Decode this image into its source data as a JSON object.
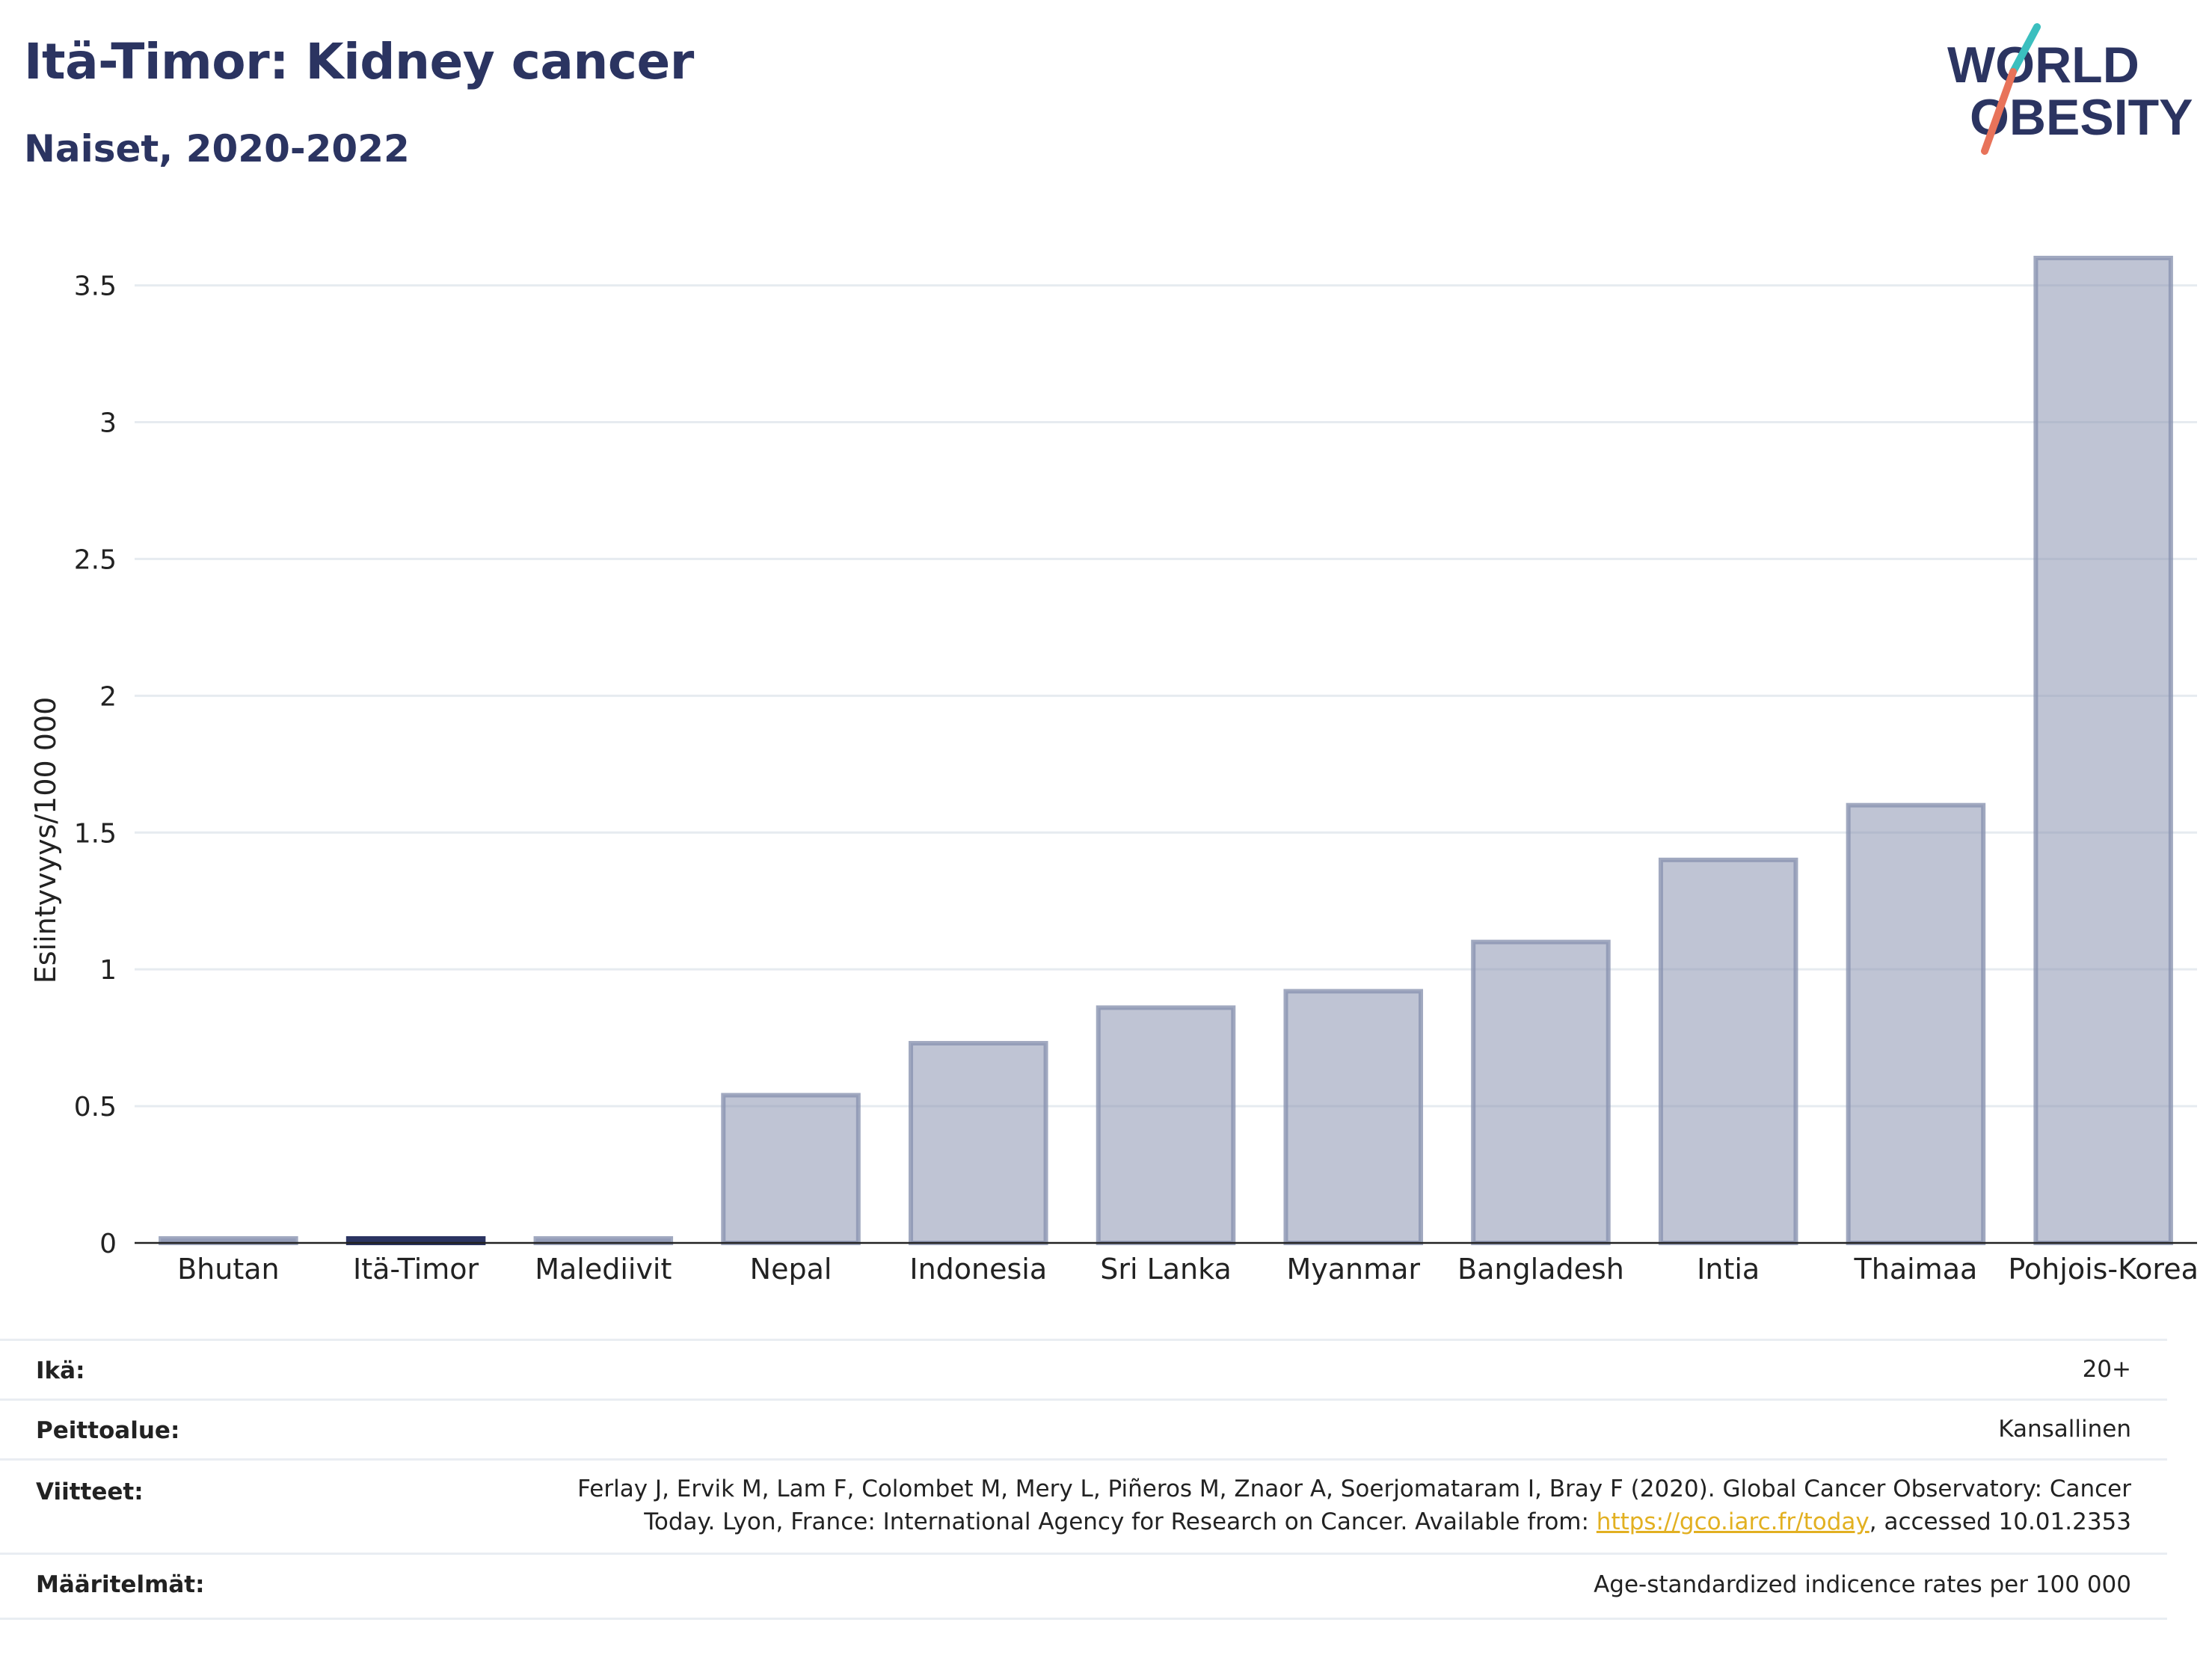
{
  "header": {
    "title": "Itä-Timor: Kidney cancer",
    "subtitle": "Naiset, 2020-2022",
    "logo_line1": "WORLD",
    "logo_line2": "OBESITY"
  },
  "chart_data": {
    "type": "bar",
    "categories": [
      "Bhutan",
      "Itä-Timor",
      "Malediivit",
      "Nepal",
      "Indonesia",
      "Sri Lanka",
      "Myanmar",
      "Bangladesh",
      "Intia",
      "Thaimaa",
      "Pohjois-Korea"
    ],
    "values": [
      0.0,
      0.0,
      0.0,
      0.54,
      0.73,
      0.86,
      0.92,
      1.1,
      1.4,
      1.6,
      3.6
    ],
    "highlight": "Itä-Timor",
    "ylabel": "Esiintyvyys/100 000",
    "xlabel": "",
    "ylim": [
      0,
      3.6
    ],
    "yticks": [
      "0",
      "0.5",
      "1",
      "1.5",
      "2",
      "2.5",
      "3",
      "3.5"
    ],
    "ytick_values": [
      0,
      0.5,
      1,
      1.5,
      2,
      2.5,
      3,
      3.5
    ],
    "grid": true,
    "colors": {
      "bar": "#8a93b0",
      "highlight": "#2b3461",
      "grid": "#e6ebf0"
    }
  },
  "meta": {
    "age_label": "Ikä:",
    "age_value": "20+",
    "coverage_label": "Peittoalue:",
    "coverage_value": "Kansallinen",
    "refs_label": "Viitteet:",
    "refs_line1": "Ferlay J, Ervik M, Lam F, Colombet M, Mery L, Piñeros M, Znaor A, Soerjomataram I, Bray F (2020). Global Cancer Observatory: Cancer",
    "refs_line2_pre": "Today. Lyon, France: International Agency for Research on Cancer. Available from: ",
    "refs_link": "https://gco.iarc.fr/today",
    "refs_line2_post": ", accessed 10.01.2353",
    "defs_label": "Määritelmät:",
    "defs_value": "Age-standardized indicence rates per 100 000"
  }
}
